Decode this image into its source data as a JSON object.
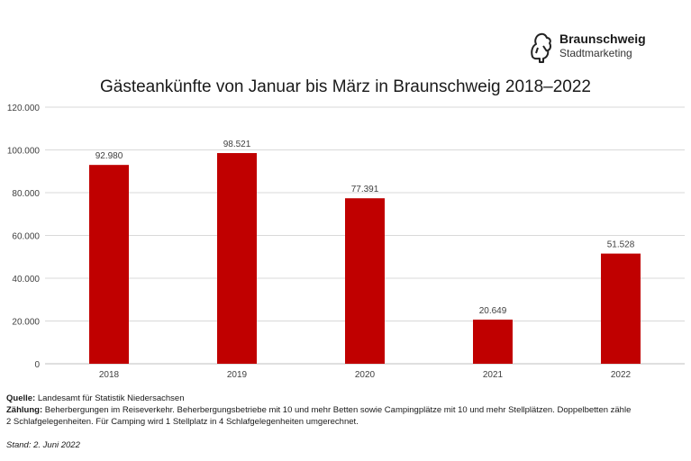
{
  "brand": {
    "name": "Braunschweig",
    "subtitle": "Stadtmarketing",
    "logo_icon": "lion-crest-icon"
  },
  "chart_data": {
    "type": "bar",
    "title": "Gästeankünfte von Januar bis März in Braunschweig 2018–2022",
    "categories": [
      "2018",
      "2019",
      "2020",
      "2021",
      "2022"
    ],
    "values": [
      92980,
      98521,
      77391,
      20649,
      51528
    ],
    "data_labels": [
      "92.980",
      "98.521",
      "77.391",
      "20.649",
      "51.528"
    ],
    "y_ticks": [
      "0",
      "20.000",
      "40.000",
      "60.000",
      "80.000",
      "100.000",
      "120.000"
    ],
    "ylim": [
      0,
      120000
    ],
    "xlabel": "",
    "ylabel": "",
    "grid": true,
    "bar_color": "#c00000"
  },
  "footer": {
    "source_label": "Quelle:",
    "source_text": " Landesamt für Statistik Niedersachsen",
    "count_label": "Zählung:",
    "count_text_1": " Beherbergungen im Reiseverkehr. Beherbergungsbetriebe mit 10 und mehr Betten sowie Campingplätze mit 10 und mehr Stellplätzen. Doppelbetten zähle",
    "count_text_2": "2 Schlafgelegenheiten. Für Camping wird 1 Stellplatz in 4 Schlafgelegenheiten umgerechnet.",
    "stand": "Stand: 2. Juni 2022"
  }
}
